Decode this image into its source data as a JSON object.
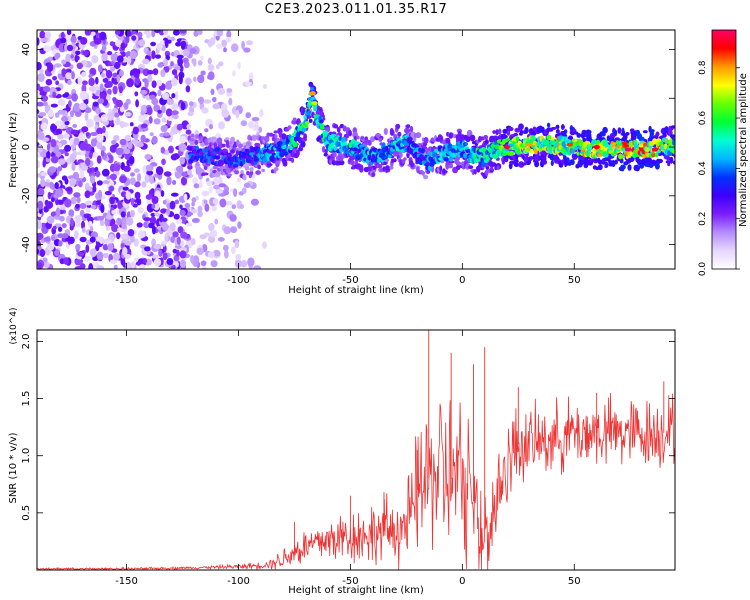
{
  "title": "C2E3.2023.011.01.35.R17",
  "colors": {
    "snr_line": "#ee3333",
    "axis": "#000000",
    "colormap": [
      "#ffffff",
      "#e6d6ff",
      "#b58cff",
      "#7a1cff",
      "#3d00ff",
      "#0033ff",
      "#00b8ff",
      "#00ffd0",
      "#00ff33",
      "#66ff00",
      "#ffff00",
      "#ff9900",
      "#ff0000",
      "#ff0066"
    ]
  },
  "chart_data": [
    {
      "type": "heatmap",
      "xlabel": "Height of straight line (km)",
      "ylabel": "Frequency (Hz)",
      "xlim": [
        -190,
        95
      ],
      "ylim": [
        -50,
        48
      ],
      "xticks": [
        -150,
        -100,
        -50,
        0,
        50
      ],
      "yticks": [
        -40,
        -20,
        0,
        20,
        40
      ],
      "grid": false,
      "colorbar": {
        "label": "Normalized spectral amplitude",
        "range": [
          0.0,
          0.95
        ],
        "ticks": [
          "0.0",
          "0.2",
          "0.4",
          "0.6",
          "0.8"
        ],
        "tick_values": [
          0.0,
          0.2,
          0.4,
          0.6,
          0.8
        ]
      },
      "ridge": {
        "x": [
          -120,
          -110,
          -100,
          -90,
          -80,
          -75,
          -70,
          -67,
          -65,
          -60,
          -50,
          -45,
          -40,
          -35,
          -30,
          -25,
          -20,
          -15,
          -10,
          -5,
          0,
          5,
          10,
          15,
          20,
          30,
          40,
          50,
          60,
          70,
          80,
          90,
          95
        ],
        "freq": [
          -3,
          -4,
          -5,
          -3,
          -1,
          3,
          10,
          22,
          12,
          2,
          0,
          -2,
          -4,
          -2,
          0,
          2,
          -3,
          -6,
          -3,
          -2,
          -1,
          -3,
          -4,
          -1,
          0,
          1,
          1,
          0,
          -1,
          -1,
          -1,
          0,
          1
        ],
        "amplitude": [
          0.35,
          0.35,
          0.35,
          0.4,
          0.45,
          0.5,
          0.55,
          0.65,
          0.55,
          0.5,
          0.5,
          0.45,
          0.45,
          0.45,
          0.45,
          0.45,
          0.4,
          0.4,
          0.45,
          0.45,
          0.45,
          0.5,
          0.5,
          0.55,
          0.6,
          0.65,
          0.7,
          0.7,
          0.7,
          0.7,
          0.8,
          0.7,
          0.6
        ]
      }
    },
    {
      "type": "line",
      "xlabel": "Height of straight line (km)",
      "ylabel": "SNR (10 * v/v)",
      "y_multiplier": "(x10^4)",
      "xlim": [
        -190,
        95
      ],
      "ylim": [
        0,
        2.1
      ],
      "xticks": [
        -150,
        -100,
        -50,
        0,
        50
      ],
      "yticks": [
        0.5,
        1.0,
        1.5,
        2.0
      ],
      "grid": false,
      "series": [
        {
          "x": [
            -190,
            -150,
            -120,
            -100,
            -90,
            -85,
            -80,
            -75,
            -70,
            -65,
            -60,
            -55,
            -50,
            -45,
            -40,
            -35,
            -30,
            -25,
            -22,
            -20,
            -18,
            -15,
            -12,
            -10,
            -5,
            0,
            5,
            10,
            12,
            15,
            20,
            25,
            30,
            40,
            50,
            60,
            70,
            80,
            90,
            95
          ],
          "y_mid": [
            0.01,
            0.01,
            0.02,
            0.03,
            0.04,
            0.06,
            0.1,
            0.16,
            0.2,
            0.24,
            0.26,
            0.28,
            0.3,
            0.3,
            0.32,
            0.34,
            0.36,
            0.4,
            0.5,
            0.7,
            0.75,
            0.8,
            0.85,
            0.9,
            0.8,
            0.75,
            0.6,
            0.35,
            0.3,
            0.6,
            0.95,
            1.1,
            1.1,
            1.15,
            1.2,
            1.2,
            1.2,
            1.2,
            1.2,
            1.25
          ],
          "y_amp": [
            0.01,
            0.01,
            0.01,
            0.02,
            0.03,
            0.05,
            0.1,
            0.14,
            0.16,
            0.18,
            0.2,
            0.22,
            0.24,
            0.25,
            0.26,
            0.28,
            0.3,
            0.35,
            0.45,
            0.55,
            0.6,
            0.6,
            0.65,
            0.7,
            0.7,
            0.7,
            0.6,
            0.5,
            0.4,
            0.45,
            0.4,
            0.35,
            0.3,
            0.3,
            0.3,
            0.3,
            0.3,
            0.3,
            0.3,
            0.3
          ],
          "peaks": [
            [
              -75,
              0.42
            ],
            [
              -50,
              0.65
            ],
            [
              -35,
              0.68
            ],
            [
              -20,
              1.05
            ],
            [
              -15,
              2.1
            ],
            [
              -5,
              1.9
            ],
            [
              5,
              1.8
            ],
            [
              10,
              1.95
            ],
            [
              25,
              1.6
            ],
            [
              60,
              1.55
            ],
            [
              90,
              1.65
            ]
          ]
        }
      ]
    }
  ]
}
